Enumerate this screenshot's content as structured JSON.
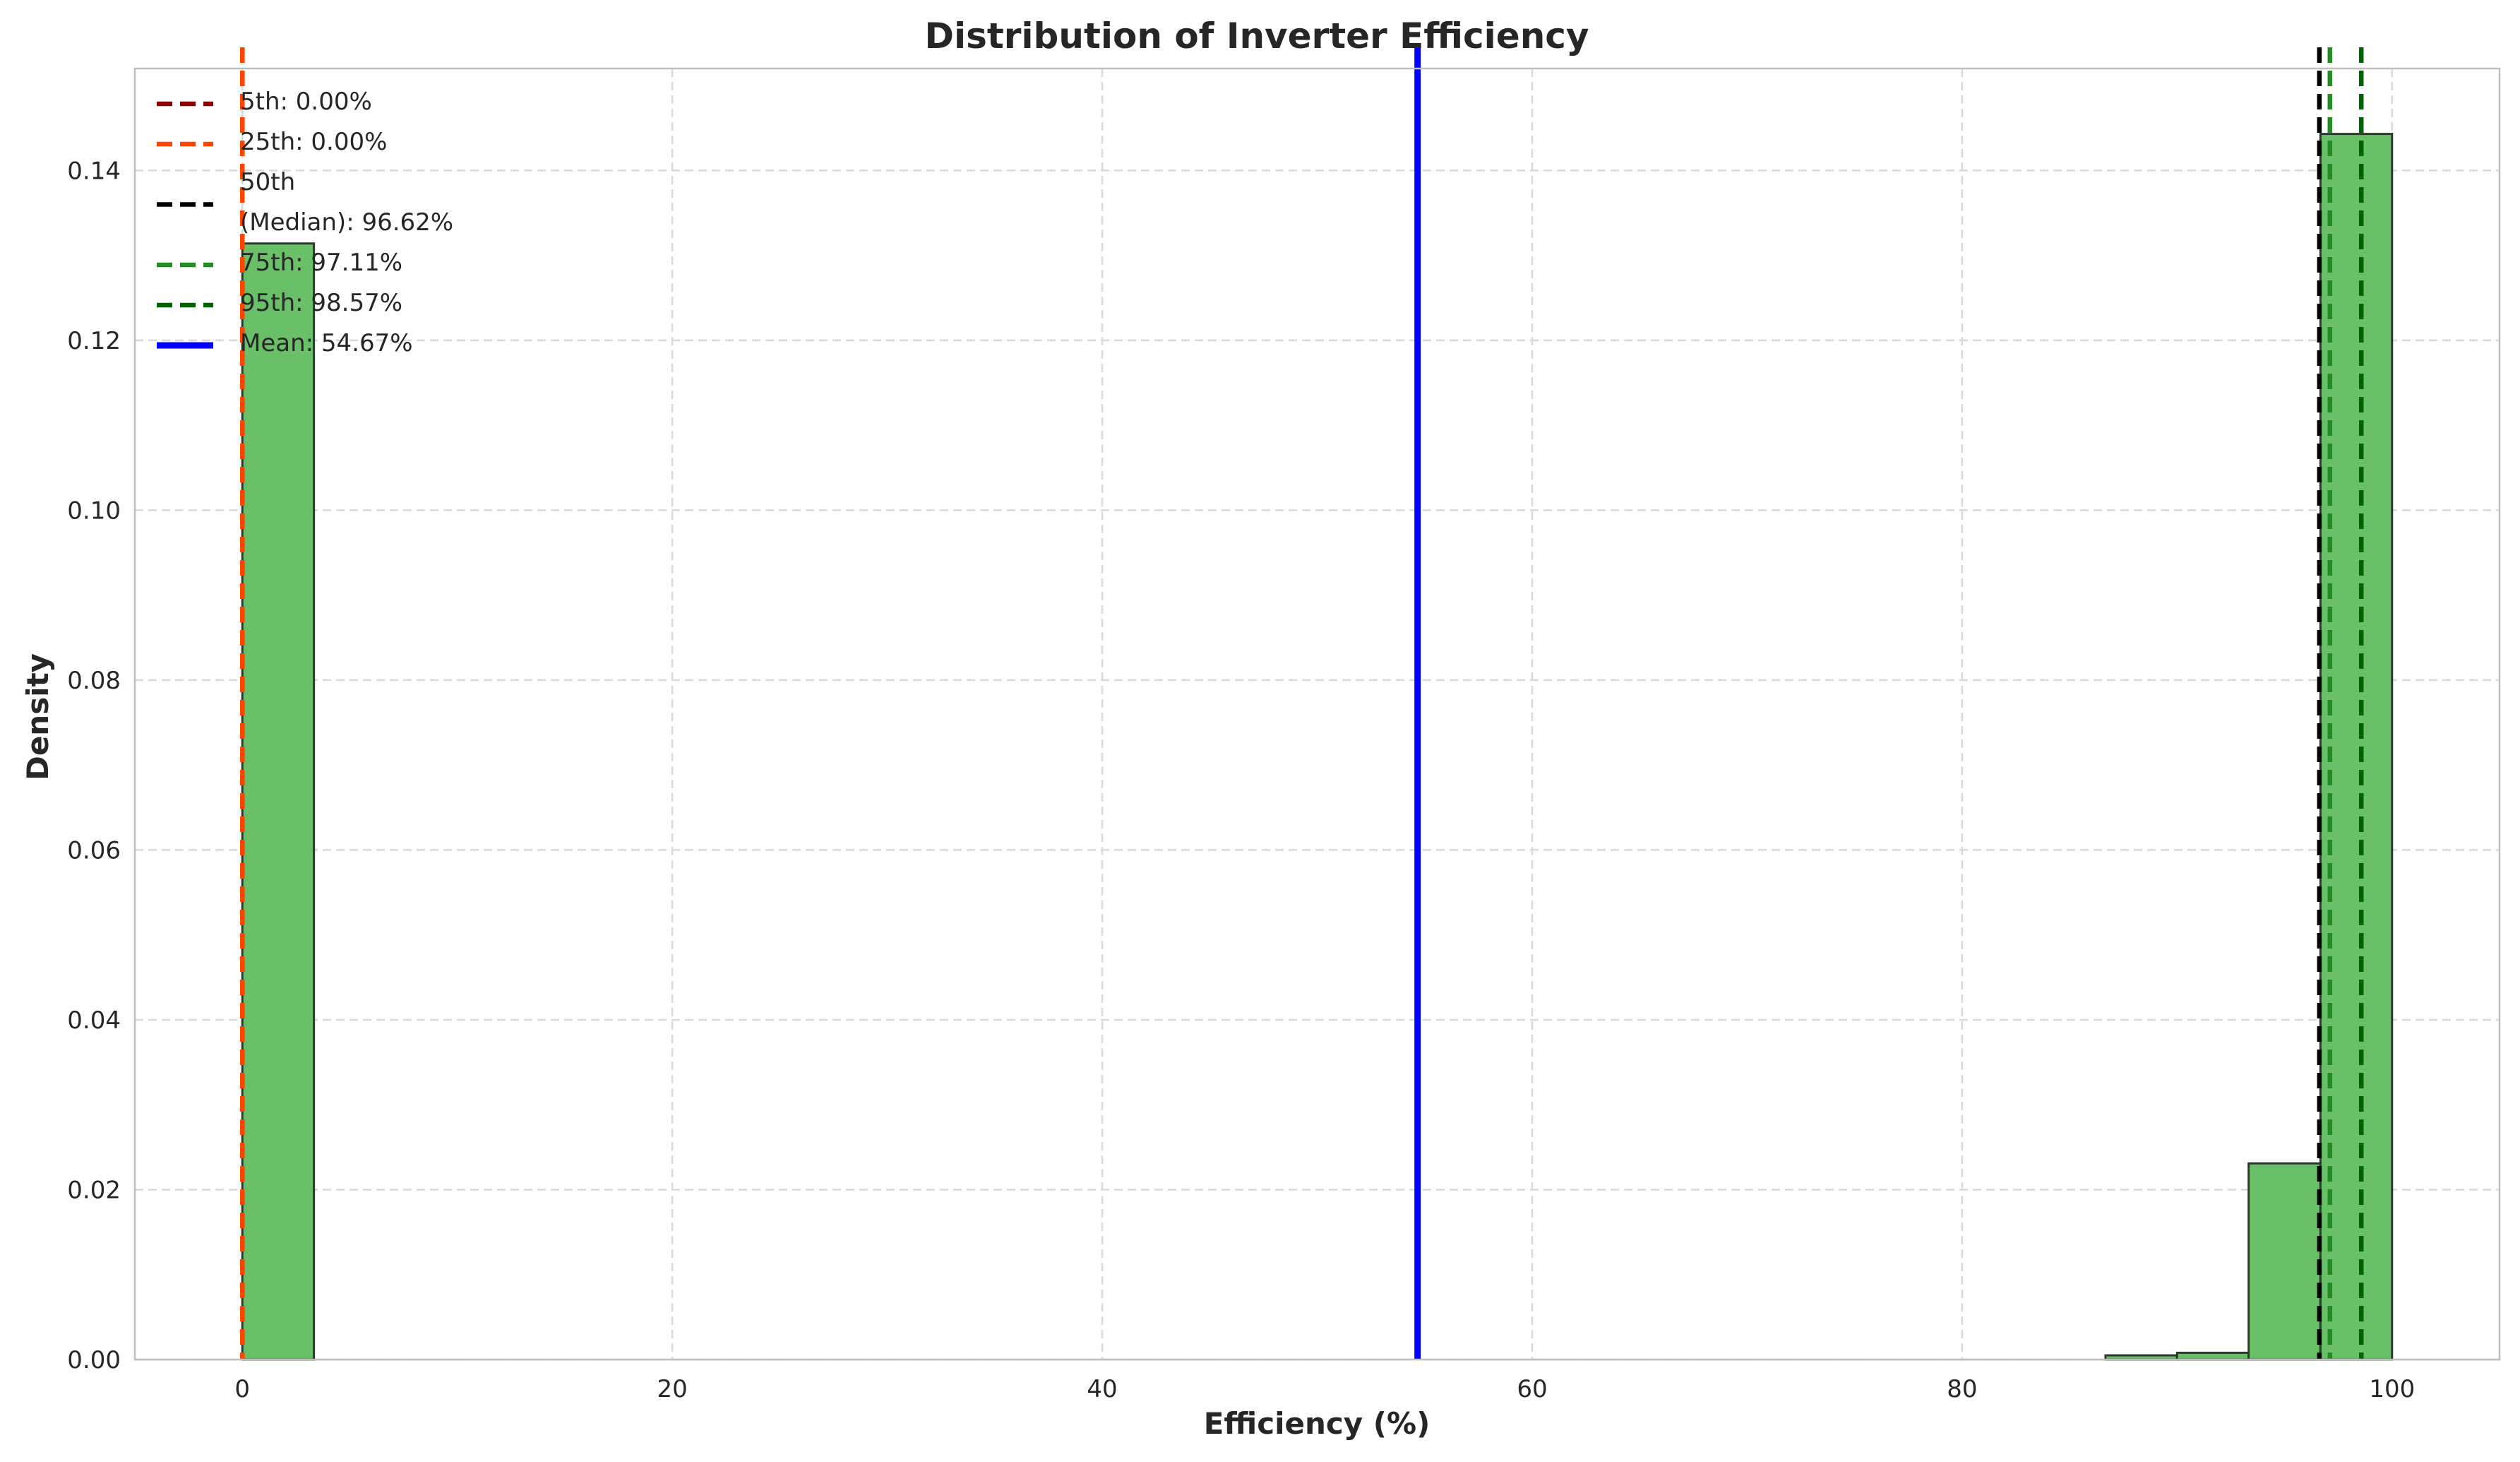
{
  "chart_data": {
    "type": "bar",
    "title": "Distribution of Inverter Efficiency",
    "xlabel": "Efficiency (%)",
    "ylabel": "Density",
    "xlim": [
      -5,
      105
    ],
    "ylim": [
      0,
      0.152
    ],
    "xticks": [
      0,
      20,
      40,
      60,
      80,
      100
    ],
    "yticks": [
      0.0,
      0.02,
      0.04,
      0.06,
      0.08,
      0.1,
      0.12,
      0.14
    ],
    "xtick_labels": [
      "0",
      "20",
      "40",
      "60",
      "80",
      "100"
    ],
    "ytick_labels": [
      "0.00",
      "0.02",
      "0.04",
      "0.06",
      "0.08",
      "0.10",
      "0.12",
      "0.14"
    ],
    "grid": true,
    "bar_color": "#6abf69",
    "bar_edge_color": "#2b3b2b",
    "bins": [
      {
        "x0": 0.0,
        "x1": 3.33,
        "density": 0.1314
      },
      {
        "x0": 86.67,
        "x1": 90.0,
        "density": 0.0005
      },
      {
        "x0": 90.0,
        "x1": 93.33,
        "density": 0.0008
      },
      {
        "x0": 93.33,
        "x1": 96.67,
        "density": 0.0231
      },
      {
        "x0": 96.67,
        "x1": 100.0,
        "density": 0.1443
      }
    ],
    "reference_lines": [
      {
        "label": "5th: 0.00%",
        "value": 0.0,
        "color": "#8b0000",
        "style": "dashed"
      },
      {
        "label": "25th: 0.00%",
        "value": 0.0,
        "color": "#ff4500",
        "style": "dashed"
      },
      {
        "label": "50th\n(Median): 96.62%",
        "value": 96.62,
        "color": "#000000",
        "style": "dashed"
      },
      {
        "label": "75th: 97.11%",
        "value": 97.11,
        "color": "#228b22",
        "style": "dashed"
      },
      {
        "label": "95th: 98.57%",
        "value": 98.57,
        "color": "#006400",
        "style": "dashed"
      },
      {
        "label": "Mean: 54.67%",
        "value": 54.67,
        "color": "#0000ff",
        "style": "solid"
      }
    ],
    "legend_position": "top-left"
  }
}
